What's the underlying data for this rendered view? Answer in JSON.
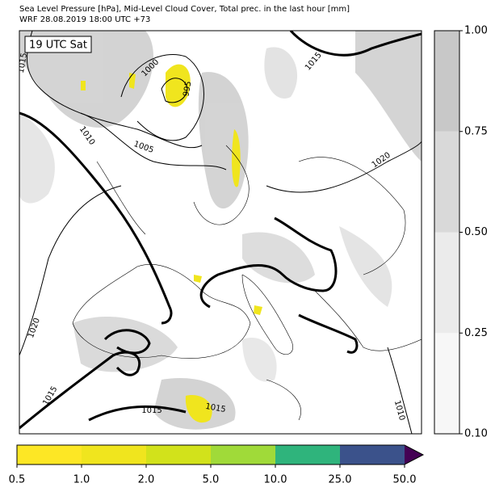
{
  "title": {
    "line1": "Sea Level Pressure [hPa], Mid-Level Cloud Cover, Total prec. in the last hour [mm]",
    "line2": "WRF 28.08.2019 18:00 UTC +73"
  },
  "time_label": "19 UTC Sat",
  "contour_labels": [
    "1015",
    "1000",
    "995",
    "1010",
    "1005",
    "1015",
    "1020",
    "1020",
    "1015",
    "1015",
    "1015",
    "1010"
  ],
  "cloud_colorbar": {
    "ticks": [
      {
        "value": 0.1,
        "label": "0.10"
      },
      {
        "value": 0.25,
        "label": "0.25"
      },
      {
        "value": 0.5,
        "label": "0.50"
      },
      {
        "value": 0.75,
        "label": "0.75"
      },
      {
        "value": 1,
        "label": "1.00"
      }
    ],
    "colors": [
      "#f7f7f7",
      "#ebebeb",
      "#d9d9d9",
      "#c8c8c8"
    ]
  },
  "precip_colorbar": {
    "ticks": [
      {
        "value": 0.5,
        "label": "0.5"
      },
      {
        "value": 1,
        "label": "1.0"
      },
      {
        "value": 2,
        "label": "2.0"
      },
      {
        "value": 5,
        "label": "5.0"
      },
      {
        "value": 10,
        "label": "10.0"
      },
      {
        "value": 25,
        "label": "25.0"
      },
      {
        "value": 50,
        "label": "50.0"
      }
    ],
    "colors": [
      "#fde725",
      "#f0e51e",
      "#d2e21b",
      "#a0da39",
      "#2fb47c",
      "#3b528b"
    ],
    "extend_color": "#440154"
  }
}
